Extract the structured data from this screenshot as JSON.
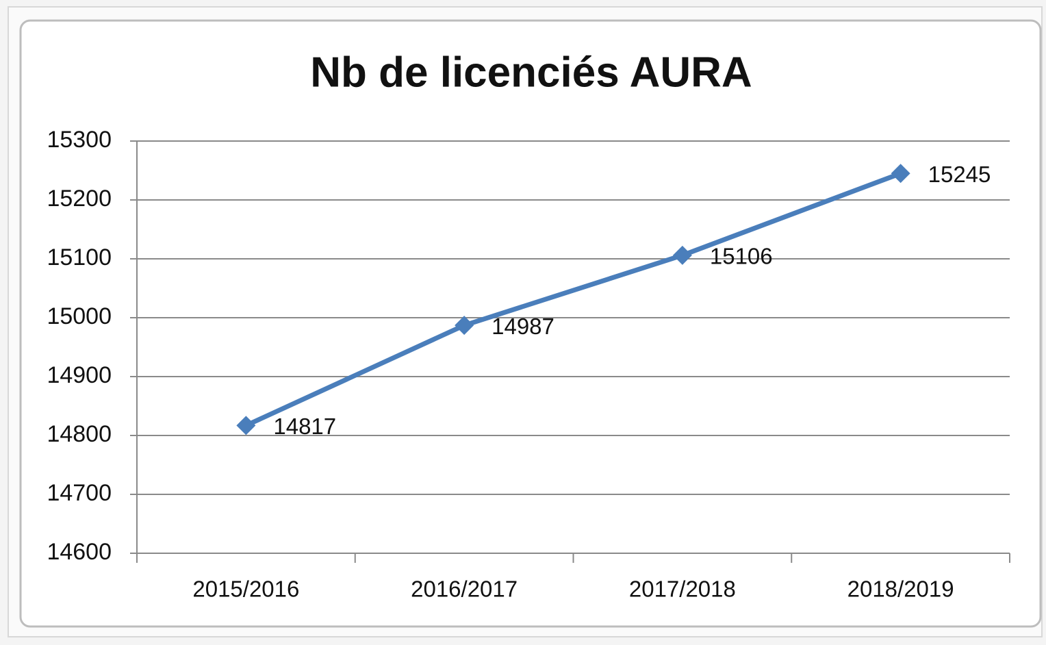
{
  "chart_data": {
    "type": "line",
    "title": "Nb de licenciés AURA",
    "categories": [
      "2015/2016",
      "2016/2017",
      "2017/2018",
      "2018/2019"
    ],
    "values": [
      14817,
      14987,
      15106,
      15245
    ],
    "color": "#4a7ebb",
    "ylim": [
      14600,
      15300
    ],
    "yticks": [
      14600,
      14700,
      14800,
      14900,
      15000,
      15100,
      15200,
      15300
    ],
    "grid": true
  }
}
